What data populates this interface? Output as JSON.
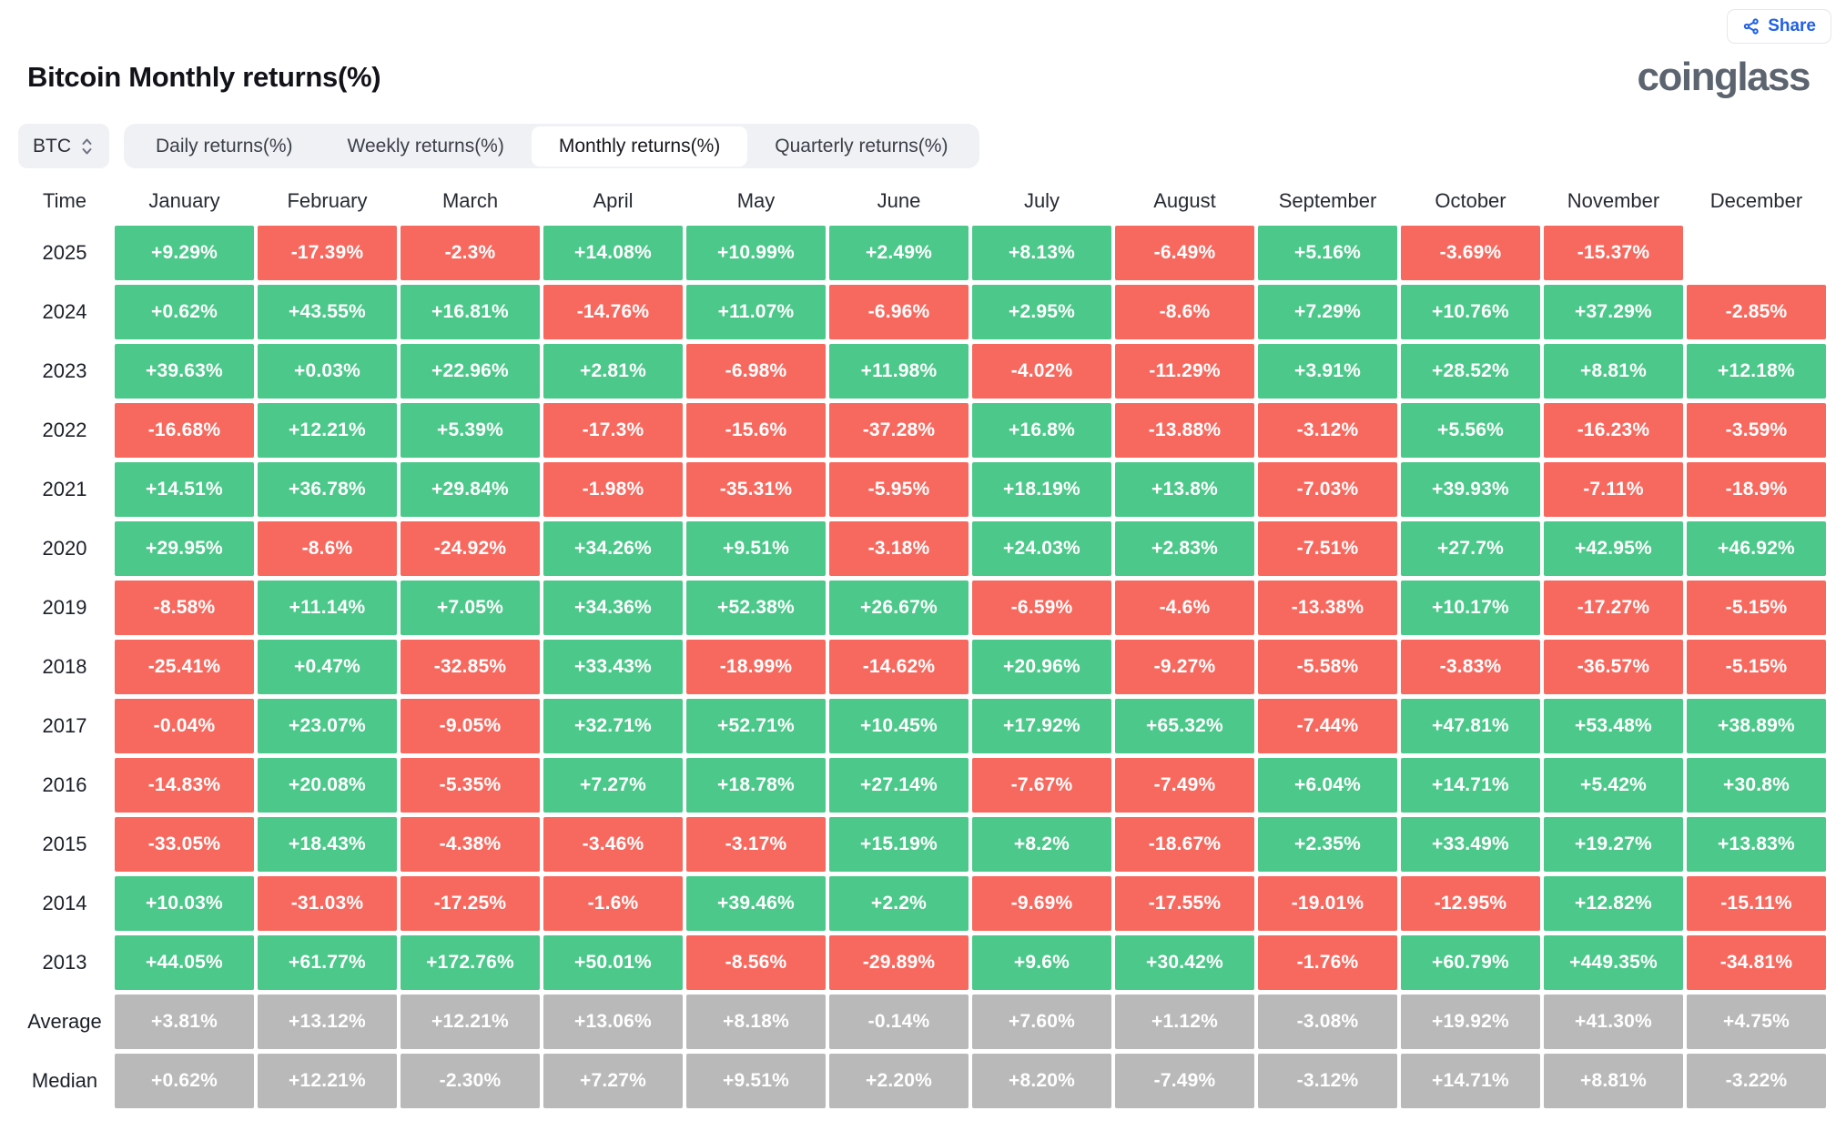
{
  "theme": {
    "accent_blue": "#2160e6",
    "positive": "#4cc88a",
    "negative": "#f7695f",
    "summary": "#b9b9b9",
    "logo_gray": "#5c6470",
    "control_bg": "#f0f1f4",
    "text_dark": "#16181d"
  },
  "header": {
    "share_label": "Share",
    "title": "Bitcoin Monthly returns(%)",
    "logo_text": "coinglass"
  },
  "controls": {
    "symbol": "BTC",
    "tabs": [
      {
        "label": "Daily returns(%)",
        "active": false
      },
      {
        "label": "Weekly returns(%)",
        "active": false
      },
      {
        "label": "Monthly returns(%)",
        "active": true
      },
      {
        "label": "Quarterly returns(%)",
        "active": false
      }
    ]
  },
  "chart_data": {
    "type": "heatmap",
    "title": "Bitcoin Monthly returns(%)",
    "unit": "%",
    "legend": {
      "positive_color": "#4cc88a",
      "negative_color": "#f7695f",
      "summary_color": "#b9b9b9"
    },
    "columns": [
      "Time",
      "January",
      "February",
      "March",
      "April",
      "May",
      "June",
      "July",
      "August",
      "September",
      "October",
      "November",
      "December"
    ],
    "rows": [
      {
        "label": "2025",
        "kind": "year",
        "values": [
          "+9.29%",
          "-17.39%",
          "-2.3%",
          "+14.08%",
          "+10.99%",
          "+2.49%",
          "+8.13%",
          "-6.49%",
          "+5.16%",
          "-3.69%",
          "-15.37%",
          null
        ]
      },
      {
        "label": "2024",
        "kind": "year",
        "values": [
          "+0.62%",
          "+43.55%",
          "+16.81%",
          "-14.76%",
          "+11.07%",
          "-6.96%",
          "+2.95%",
          "-8.6%",
          "+7.29%",
          "+10.76%",
          "+37.29%",
          "-2.85%"
        ]
      },
      {
        "label": "2023",
        "kind": "year",
        "values": [
          "+39.63%",
          "+0.03%",
          "+22.96%",
          "+2.81%",
          "-6.98%",
          "+11.98%",
          "-4.02%",
          "-11.29%",
          "+3.91%",
          "+28.52%",
          "+8.81%",
          "+12.18%"
        ]
      },
      {
        "label": "2022",
        "kind": "year",
        "values": [
          "-16.68%",
          "+12.21%",
          "+5.39%",
          "-17.3%",
          "-15.6%",
          "-37.28%",
          "+16.8%",
          "-13.88%",
          "-3.12%",
          "+5.56%",
          "-16.23%",
          "-3.59%"
        ]
      },
      {
        "label": "2021",
        "kind": "year",
        "values": [
          "+14.51%",
          "+36.78%",
          "+29.84%",
          "-1.98%",
          "-35.31%",
          "-5.95%",
          "+18.19%",
          "+13.8%",
          "-7.03%",
          "+39.93%",
          "-7.11%",
          "-18.9%"
        ]
      },
      {
        "label": "2020",
        "kind": "year",
        "values": [
          "+29.95%",
          "-8.6%",
          "-24.92%",
          "+34.26%",
          "+9.51%",
          "-3.18%",
          "+24.03%",
          "+2.83%",
          "-7.51%",
          "+27.7%",
          "+42.95%",
          "+46.92%"
        ]
      },
      {
        "label": "2019",
        "kind": "year",
        "values": [
          "-8.58%",
          "+11.14%",
          "+7.05%",
          "+34.36%",
          "+52.38%",
          "+26.67%",
          "-6.59%",
          "-4.6%",
          "-13.38%",
          "+10.17%",
          "-17.27%",
          "-5.15%"
        ]
      },
      {
        "label": "2018",
        "kind": "year",
        "values": [
          "-25.41%",
          "+0.47%",
          "-32.85%",
          "+33.43%",
          "-18.99%",
          "-14.62%",
          "+20.96%",
          "-9.27%",
          "-5.58%",
          "-3.83%",
          "-36.57%",
          "-5.15%"
        ]
      },
      {
        "label": "2017",
        "kind": "year",
        "values": [
          "-0.04%",
          "+23.07%",
          "-9.05%",
          "+32.71%",
          "+52.71%",
          "+10.45%",
          "+17.92%",
          "+65.32%",
          "-7.44%",
          "+47.81%",
          "+53.48%",
          "+38.89%"
        ]
      },
      {
        "label": "2016",
        "kind": "year",
        "values": [
          "-14.83%",
          "+20.08%",
          "-5.35%",
          "+7.27%",
          "+18.78%",
          "+27.14%",
          "-7.67%",
          "-7.49%",
          "+6.04%",
          "+14.71%",
          "+5.42%",
          "+30.8%"
        ]
      },
      {
        "label": "2015",
        "kind": "year",
        "values": [
          "-33.05%",
          "+18.43%",
          "-4.38%",
          "-3.46%",
          "-3.17%",
          "+15.19%",
          "+8.2%",
          "-18.67%",
          "+2.35%",
          "+33.49%",
          "+19.27%",
          "+13.83%"
        ]
      },
      {
        "label": "2014",
        "kind": "year",
        "values": [
          "+10.03%",
          "-31.03%",
          "-17.25%",
          "-1.6%",
          "+39.46%",
          "+2.2%",
          "-9.69%",
          "-17.55%",
          "-19.01%",
          "-12.95%",
          "+12.82%",
          "-15.11%"
        ]
      },
      {
        "label": "2013",
        "kind": "year",
        "values": [
          "+44.05%",
          "+61.77%",
          "+172.76%",
          "+50.01%",
          "-8.56%",
          "-29.89%",
          "+9.6%",
          "+30.42%",
          "-1.76%",
          "+60.79%",
          "+449.35%",
          "-34.81%"
        ]
      },
      {
        "label": "Average",
        "kind": "summary",
        "values": [
          "+3.81%",
          "+13.12%",
          "+12.21%",
          "+13.06%",
          "+8.18%",
          "-0.14%",
          "+7.60%",
          "+1.12%",
          "-3.08%",
          "+19.92%",
          "+41.30%",
          "+4.75%"
        ]
      },
      {
        "label": "Median",
        "kind": "summary",
        "values": [
          "+0.62%",
          "+12.21%",
          "-2.30%",
          "+7.27%",
          "+9.51%",
          "+2.20%",
          "+8.20%",
          "-7.49%",
          "-3.12%",
          "+14.71%",
          "+8.81%",
          "-3.22%"
        ]
      }
    ]
  }
}
